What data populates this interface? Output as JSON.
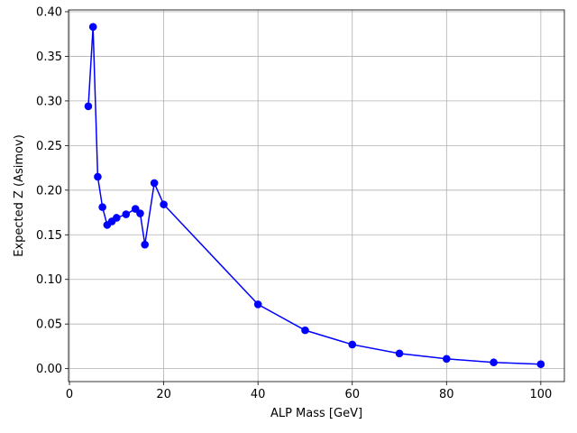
{
  "chart_data": {
    "type": "line",
    "title": "",
    "xlabel": "ALP Mass [GeV]",
    "ylabel": "Expected Z (Asimov)",
    "xlim": [
      -0.2,
      105.0
    ],
    "ylim": [
      -0.0145,
      0.402
    ],
    "xticks": [
      0,
      20,
      40,
      60,
      80,
      100
    ],
    "xtick_labels": [
      "0",
      "20",
      "40",
      "60",
      "80",
      "100"
    ],
    "yticks": [
      0.0,
      0.05,
      0.1,
      0.15,
      0.2,
      0.25,
      0.3,
      0.35,
      0.4
    ],
    "ytick_labels": [
      "0.00",
      "0.05",
      "0.10",
      "0.15",
      "0.20",
      "0.25",
      "0.30",
      "0.35",
      "0.40"
    ],
    "grid": true,
    "legend": "none",
    "series": [
      {
        "color": "#0000ff",
        "marker": "circle",
        "x": [
          4,
          5,
          6,
          7,
          8,
          9,
          10,
          12,
          14,
          15,
          16,
          18,
          20,
          40,
          50,
          60,
          70,
          80,
          90,
          100
        ],
        "y": [
          0.294,
          0.383,
          0.215,
          0.181,
          0.161,
          0.165,
          0.169,
          0.173,
          0.179,
          0.174,
          0.139,
          0.208,
          0.184,
          0.072,
          0.043,
          0.027,
          0.017,
          0.011,
          0.007,
          0.005
        ]
      }
    ]
  }
}
